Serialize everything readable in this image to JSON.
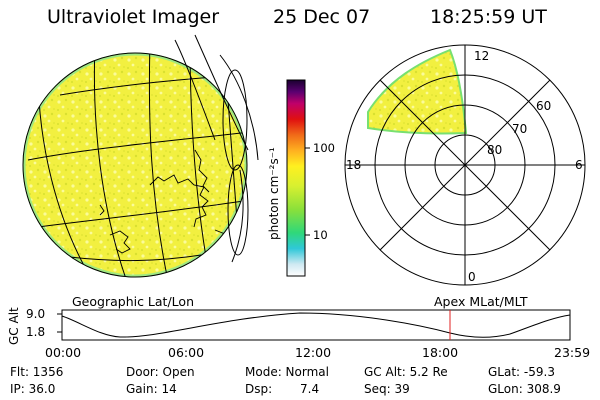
{
  "header": {
    "title": "Ultraviolet Imager",
    "date": "25 Dec 07",
    "time": "18:25:59 UT"
  },
  "colorbar": {
    "label": "photon cm⁻²s⁻¹",
    "tick_labels": [
      "100",
      "10"
    ]
  },
  "polar_plot": {
    "mlt_labels": {
      "top": "12",
      "left": "18",
      "right": "6",
      "bottom": "0"
    },
    "lat_labels": [
      "60",
      "70",
      "80"
    ]
  },
  "map_labels": {
    "left": "Geographic Lat/Lon",
    "right": "Apex MLat/MLT"
  },
  "altitude_plot": {
    "axis_label": "GC Alt",
    "y_ticks": [
      "9.0",
      "1.8"
    ],
    "x_ticks": [
      "00:00",
      "06:00",
      "12:00",
      "18:00",
      "23:59"
    ],
    "current_time_marker": "18:26"
  },
  "info": {
    "flt": "Flt: 1356",
    "ip": "IP: 36.0",
    "door": "Door: Open",
    "gain": "Gain: 14",
    "mode": "Mode: Normal",
    "dsp_label": "Dsp:",
    "dsp_value": "7.4",
    "gc_alt": "GC Alt: 5.2 Re",
    "seq": "Seq: 39",
    "glat": "GLat: -59.3",
    "glon": "GLon: 308.9"
  },
  "colors": {
    "image_fill": "#f2f040",
    "image_dark": "#d9e030",
    "image_light": "#fbfb9a",
    "edge_green": "#78e070",
    "marker_red": "#e02020"
  }
}
